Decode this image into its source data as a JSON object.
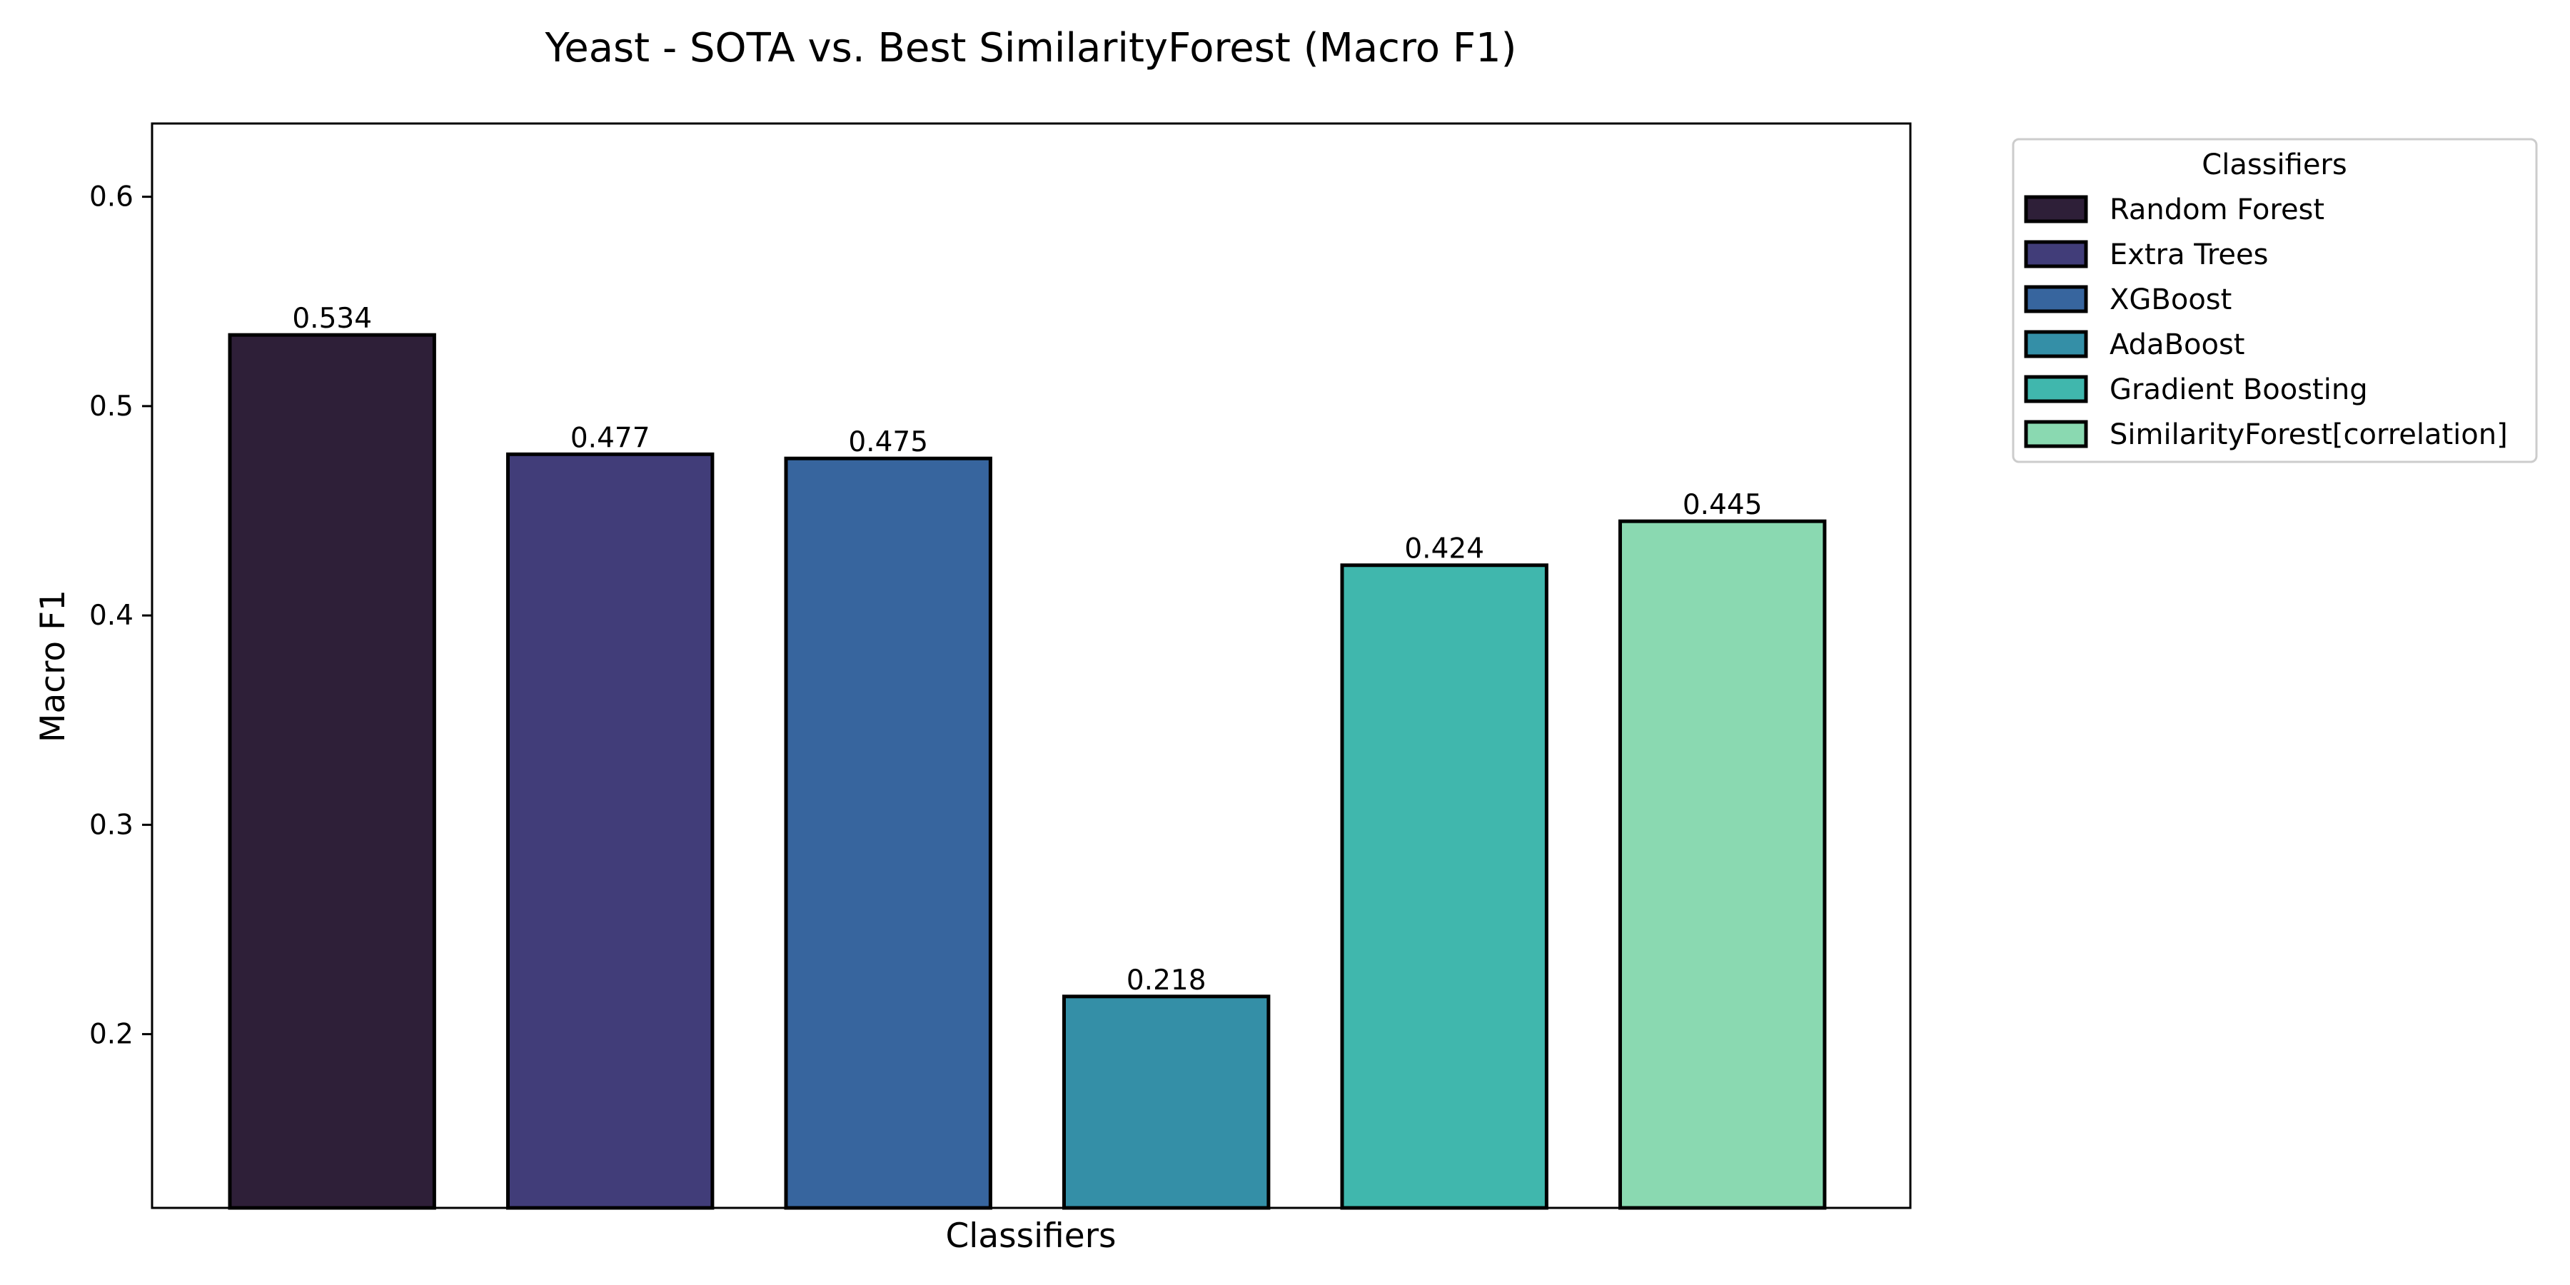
{
  "chart_data": {
    "type": "bar",
    "title": "Yeast - SOTA vs. Best SimilarityForest (Macro F1)",
    "xlabel": "Classifiers",
    "ylabel": "Macro F1",
    "ylim": [
      0.117,
      0.635
    ],
    "yticks": [
      "0.2",
      "0.3",
      "0.4",
      "0.5",
      "0.6"
    ],
    "grid": false,
    "legend": {
      "title": "Classifiers",
      "placement": "outside-top-right"
    },
    "categories": [
      "Random Forest",
      "Extra Trees",
      "XGBoost",
      "AdaBoost",
      "Gradient Boosting",
      "SimilarityForest[correlation]"
    ],
    "values": [
      0.534,
      0.477,
      0.475,
      0.218,
      0.424,
      0.445
    ],
    "value_labels": [
      "0.534",
      "0.477",
      "0.475",
      "0.218",
      "0.424",
      "0.445"
    ],
    "colors": [
      "#2e1f38",
      "#413d79",
      "#37659e",
      "#348fa7",
      "#40b7ad",
      "#8ad9b1"
    ]
  }
}
